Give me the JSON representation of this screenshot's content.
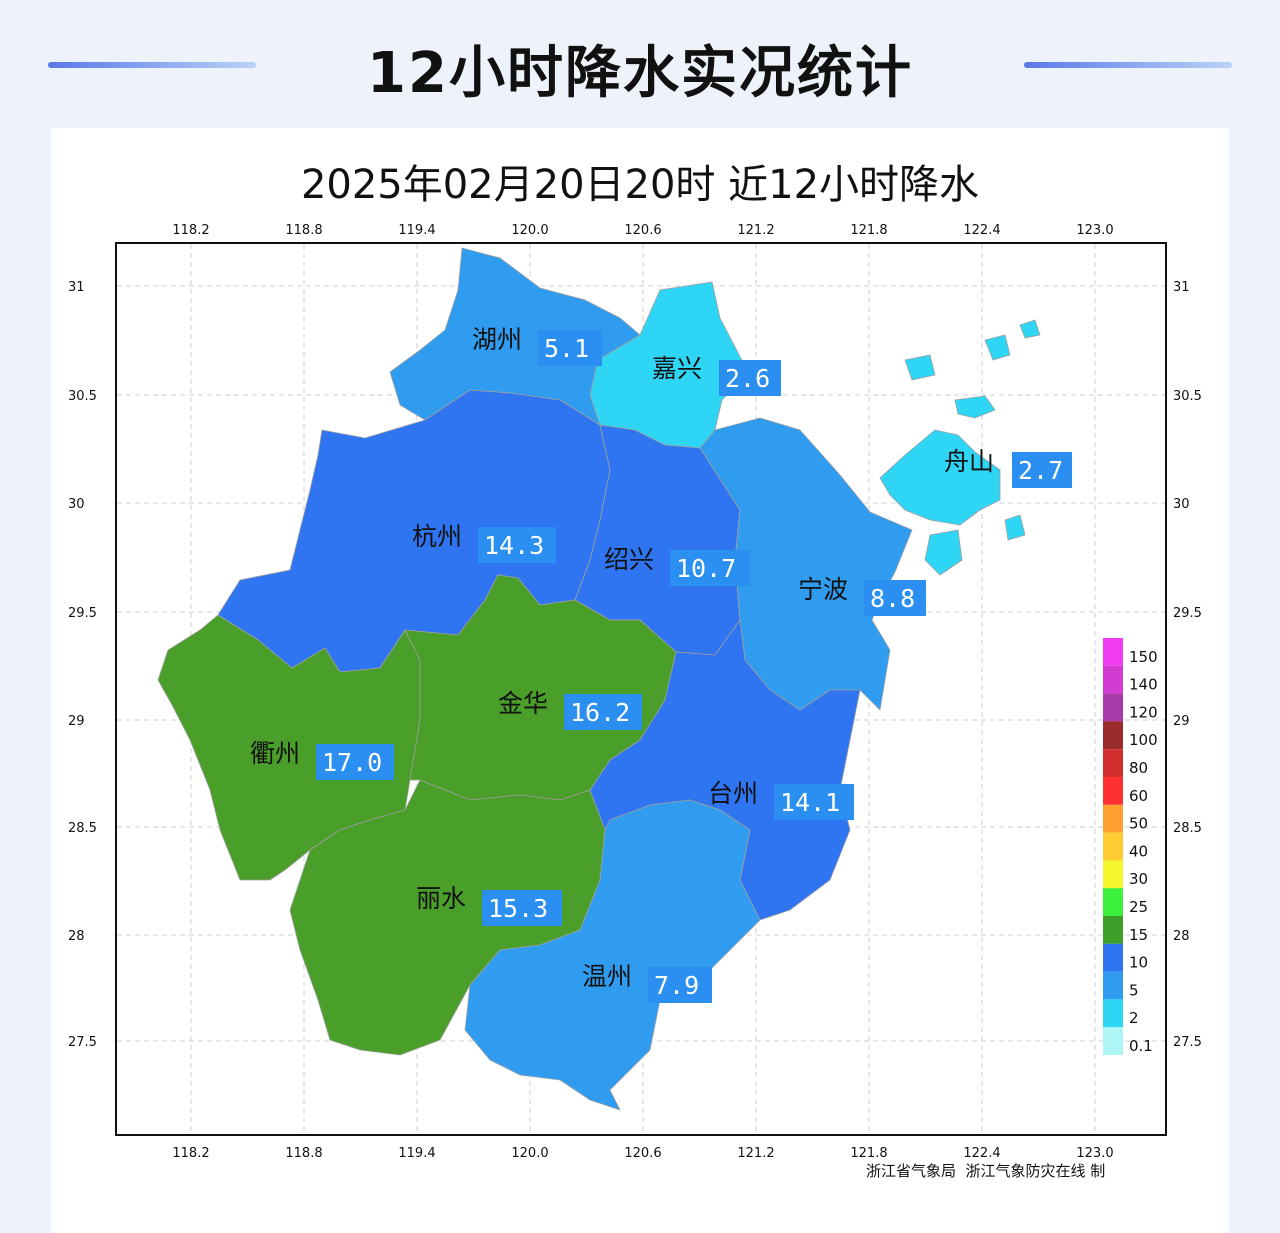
{
  "header": {
    "title": "12小时降水实况统计"
  },
  "map": {
    "title": "2025年02月20日20时  近12小时降水",
    "lon_ticks": [
      "118.2",
      "118.8",
      "119.4",
      "120.0",
      "120.6",
      "121.2",
      "121.8",
      "122.4",
      "123.0"
    ],
    "lat_ticks": [
      "31",
      "30.5",
      "30",
      "29.5",
      "29",
      "28.5",
      "28",
      "27.5"
    ],
    "cities": [
      {
        "name": "湖州",
        "value": "5.1"
      },
      {
        "name": "嘉兴",
        "value": "2.6"
      },
      {
        "name": "舟山",
        "value": "2.7"
      },
      {
        "name": "杭州",
        "value": "14.3"
      },
      {
        "name": "绍兴",
        "value": "10.7"
      },
      {
        "name": "宁波",
        "value": "8.8"
      },
      {
        "name": "金华",
        "value": "16.2"
      },
      {
        "name": "衢州",
        "value": "17.0"
      },
      {
        "name": "台州",
        "value": "14.1"
      },
      {
        "name": "丽水",
        "value": "15.3"
      },
      {
        "name": "温州",
        "value": "7.9"
      }
    ],
    "legend": [
      {
        "label": "150",
        "color": "#f03cf0"
      },
      {
        "label": "140",
        "color": "#d23cd2"
      },
      {
        "label": "120",
        "color": "#a83aaa"
      },
      {
        "label": "100",
        "color": "#9c2b2b"
      },
      {
        "label": "80",
        "color": "#d42f2f"
      },
      {
        "label": "60",
        "color": "#ff3030"
      },
      {
        "label": "50",
        "color": "#ff9f2f"
      },
      {
        "label": "40",
        "color": "#ffcc33"
      },
      {
        "label": "30",
        "color": "#f6f62e"
      },
      {
        "label": "25",
        "color": "#3cf03c"
      },
      {
        "label": "15",
        "color": "#3e9e2a"
      },
      {
        "label": "10",
        "color": "#2f74f0"
      },
      {
        "label": "5",
        "color": "#2f9cf0"
      },
      {
        "label": "2",
        "color": "#2fd5f5"
      },
      {
        "label": "0.1",
        "color": "#aef5f5"
      }
    ],
    "credit": "浙江省气象局  浙江气象防灾在线 制"
  }
}
